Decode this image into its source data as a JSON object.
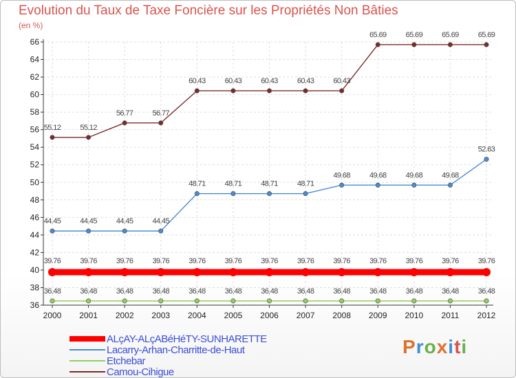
{
  "title": "Evolution du Taux de Taxe Foncière sur les Propriétés Non Bâties",
  "unit": "(en %)",
  "logo": {
    "text": "Proxiti",
    "colors": [
      "#e0712b",
      "#3c8fd6",
      "#6ab04c",
      "#e0712b",
      "#3c8fd6",
      "#d9534f",
      "#6ab04c"
    ]
  },
  "chart_data": {
    "type": "line",
    "x": [
      "2000",
      "2001",
      "2002",
      "2003",
      "2004",
      "2005",
      "2006",
      "2007",
      "2008",
      "2009",
      "2010",
      "2011",
      "2012"
    ],
    "ylim": [
      36,
      66
    ],
    "yticks": [
      36,
      38,
      40,
      42,
      44,
      46,
      48,
      50,
      52,
      54,
      56,
      58,
      60,
      62,
      64,
      66
    ],
    "grid": true,
    "legend_position": "bottom-left",
    "series": [
      {
        "name": "ALçAY-ALçABéHéTY-SUNHARETTE",
        "color": "#ff0000",
        "thick": true,
        "values": [
          39.76,
          39.76,
          39.76,
          39.76,
          39.76,
          39.76,
          39.76,
          39.76,
          39.76,
          39.76,
          39.76,
          39.76,
          39.76
        ],
        "labels": [
          "39.76",
          "39.76",
          "39.76",
          "39.76",
          "39.76",
          "39.76",
          "39.76",
          "39.76",
          "39.76",
          "39.76",
          "39.76",
          "39.76",
          "39.76"
        ]
      },
      {
        "name": "Lacarry-Arhan-Charritte-de-Haut",
        "color": "#4a8ccf",
        "thick": false,
        "values": [
          44.45,
          44.45,
          44.45,
          44.45,
          48.71,
          48.71,
          48.71,
          48.71,
          49.68,
          49.68,
          49.68,
          49.68,
          52.63
        ],
        "labels": [
          "44.45",
          "44.45",
          "44.45",
          "44.45",
          "48.71",
          "48.71",
          "48.71",
          "48.71",
          "49.68",
          "49.68",
          "49.68",
          "49.68",
          "52.63"
        ]
      },
      {
        "name": "Etchebar",
        "color": "#8ed05a",
        "thick": false,
        "values": [
          36.48,
          36.48,
          36.48,
          36.48,
          36.48,
          36.48,
          36.48,
          36.48,
          36.48,
          36.48,
          36.48,
          36.48,
          36.48
        ],
        "labels": [
          "36.48",
          "36.48",
          "36.48",
          "36.48",
          "36.48",
          "36.48",
          "36.48",
          "36.48",
          "36.48",
          "36.48",
          "36.48",
          "36.48",
          "36.48"
        ]
      },
      {
        "name": "Camou-Cihigue",
        "color": "#7a2a2a",
        "thick": false,
        "values": [
          55.12,
          55.12,
          56.77,
          56.77,
          60.43,
          60.43,
          60.43,
          60.43,
          60.43,
          65.69,
          65.69,
          65.69,
          65.69
        ],
        "labels": [
          "55.12",
          "55.12",
          "56.77",
          "56.77",
          "60.43",
          "60.43",
          "60.43",
          "60.43",
          "60.43",
          "65.69",
          "65.69",
          "65.69",
          "65.69"
        ]
      }
    ]
  }
}
